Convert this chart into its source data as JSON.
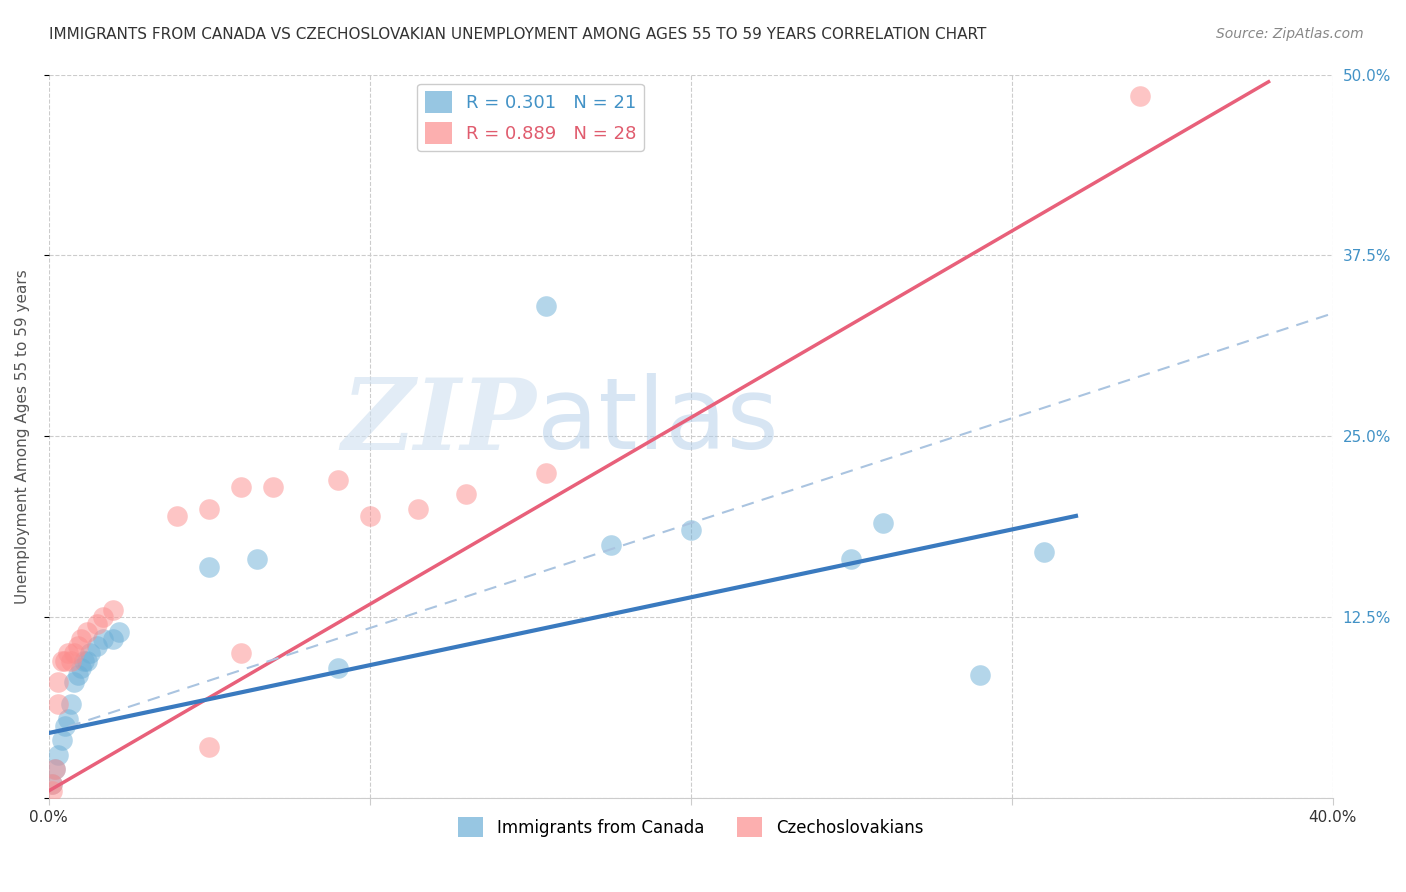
{
  "title": "IMMIGRANTS FROM CANADA VS CZECHOSLOVAKIAN UNEMPLOYMENT AMONG AGES 55 TO 59 YEARS CORRELATION CHART",
  "source": "Source: ZipAtlas.com",
  "ylabel": "Unemployment Among Ages 55 to 59 years",
  "xlim": [
    0.0,
    0.4
  ],
  "ylim": [
    0.0,
    0.5
  ],
  "xticks": [
    0.0,
    0.1,
    0.2,
    0.3,
    0.4
  ],
  "yticks_right": [
    0.0,
    0.125,
    0.25,
    0.375,
    0.5
  ],
  "ytick_labels_right": [
    "",
    "12.5%",
    "25.0%",
    "37.5%",
    "50.0%"
  ],
  "xtick_labels": [
    "0.0%",
    "",
    "",
    "",
    "40.0%"
  ],
  "color_blue": "#6baed6",
  "color_pink": "#fc8d8d",
  "color_line_blue": "#3a7abf",
  "color_line_pink": "#e8607a",
  "color_dashed": "#aac4e0",
  "watermark_zip": "ZIP",
  "watermark_atlas": "atlas",
  "legend_label1": "Immigrants from Canada",
  "legend_label2": "Czechoslovakians",
  "blue_x": [
    0.001,
    0.002,
    0.003,
    0.004,
    0.005,
    0.006,
    0.007,
    0.008,
    0.009,
    0.01,
    0.011,
    0.012,
    0.013,
    0.015,
    0.017,
    0.02,
    0.022,
    0.05,
    0.065,
    0.09,
    0.155,
    0.175,
    0.2,
    0.25,
    0.26,
    0.29,
    0.31
  ],
  "blue_y": [
    0.01,
    0.02,
    0.03,
    0.04,
    0.05,
    0.055,
    0.065,
    0.08,
    0.085,
    0.09,
    0.095,
    0.095,
    0.1,
    0.105,
    0.11,
    0.11,
    0.115,
    0.16,
    0.165,
    0.09,
    0.34,
    0.175,
    0.185,
    0.165,
    0.19,
    0.085,
    0.17
  ],
  "pink_x": [
    0.001,
    0.001,
    0.002,
    0.003,
    0.003,
    0.004,
    0.005,
    0.006,
    0.007,
    0.008,
    0.009,
    0.01,
    0.012,
    0.015,
    0.017,
    0.02,
    0.04,
    0.05,
    0.06,
    0.07,
    0.09,
    0.115,
    0.13,
    0.155,
    0.05,
    0.06,
    0.1,
    0.34
  ],
  "pink_y": [
    0.005,
    0.01,
    0.02,
    0.065,
    0.08,
    0.095,
    0.095,
    0.1,
    0.095,
    0.1,
    0.105,
    0.11,
    0.115,
    0.12,
    0.125,
    0.13,
    0.195,
    0.2,
    0.215,
    0.215,
    0.22,
    0.2,
    0.21,
    0.225,
    0.035,
    0.1,
    0.195,
    0.485
  ],
  "blue_line_x0": 0.0,
  "blue_line_y0": 0.045,
  "blue_line_x1": 0.32,
  "blue_line_y1": 0.195,
  "pink_line_x0": 0.0,
  "pink_line_y0": 0.005,
  "pink_line_x1": 0.38,
  "pink_line_y1": 0.495,
  "dashed_line_x0": 0.0,
  "dashed_line_y0": 0.045,
  "dashed_line_x1": 0.4,
  "dashed_line_y1": 0.335
}
